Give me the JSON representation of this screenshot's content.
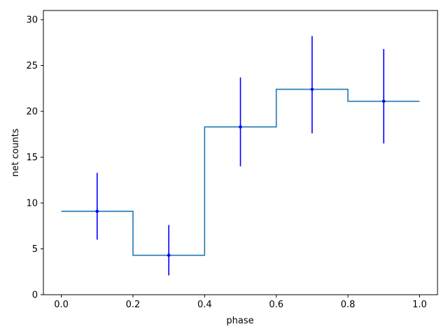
{
  "chart_data": {
    "type": "line",
    "subtype": "step-histogram-with-errorbars",
    "xlabel": "phase",
    "ylabel": "net counts",
    "xlim": [
      -0.05,
      1.05
    ],
    "ylim": [
      0,
      31
    ],
    "xticks": [
      0.0,
      0.2,
      0.4,
      0.6,
      0.8,
      1.0
    ],
    "xtick_labels": [
      "0.0",
      "0.2",
      "0.4",
      "0.6",
      "0.8",
      "1.0"
    ],
    "yticks": [
      0,
      5,
      10,
      15,
      20,
      25,
      30
    ],
    "ytick_labels": [
      "0",
      "5",
      "10",
      "15",
      "20",
      "25",
      "30"
    ],
    "grid": false,
    "bin_edges": [
      0.0,
      0.2,
      0.4,
      0.6,
      0.8,
      1.0
    ],
    "series": [
      {
        "style": "step",
        "color": "#1f77b4",
        "values": [
          9.1,
          4.3,
          18.3,
          22.4,
          21.1
        ]
      },
      {
        "style": "errorbar",
        "color": "#0000ff",
        "x": [
          0.1,
          0.3,
          0.5,
          0.7,
          0.9
        ],
        "y": [
          9.1,
          4.3,
          18.3,
          22.4,
          21.1
        ],
        "yerr_low": [
          6.0,
          2.1,
          14.0,
          17.6,
          16.5
        ],
        "yerr_high": [
          13.3,
          7.6,
          23.7,
          28.2,
          26.8
        ]
      }
    ]
  }
}
